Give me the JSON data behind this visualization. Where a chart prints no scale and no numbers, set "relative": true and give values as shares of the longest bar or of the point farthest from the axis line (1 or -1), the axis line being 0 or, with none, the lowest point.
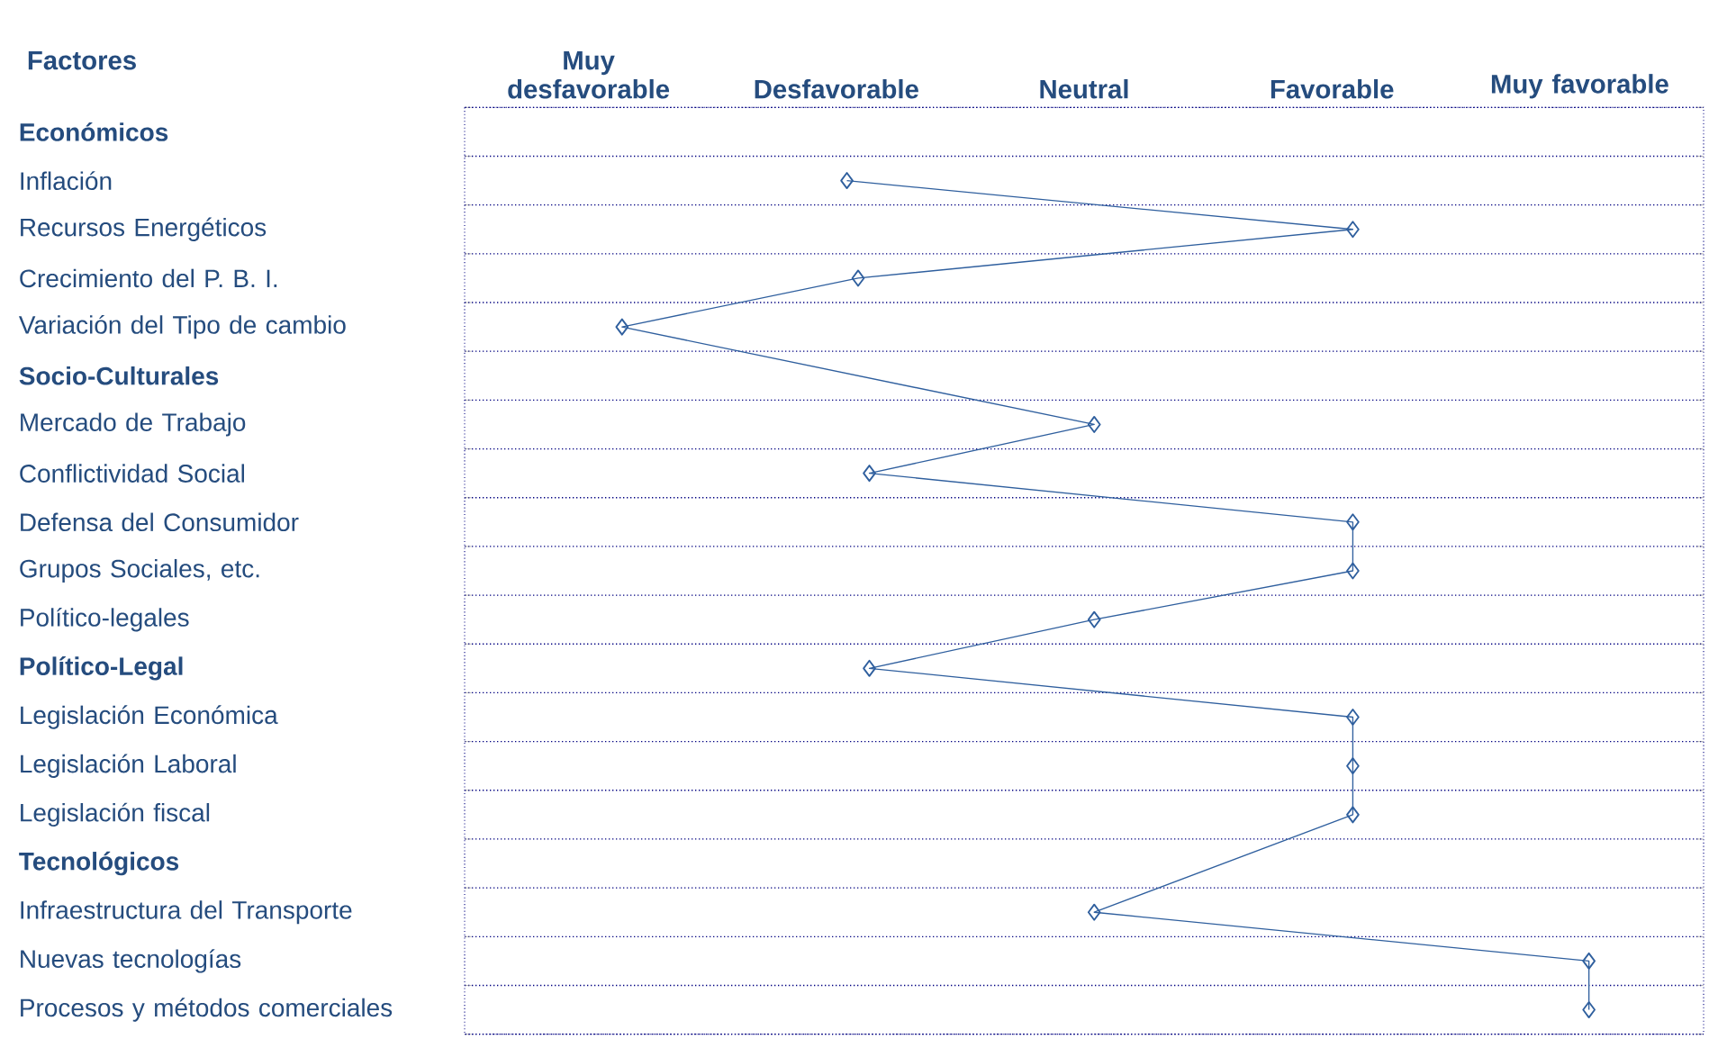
{
  "chart_data": {
    "type": "line",
    "orientation": "horizontal",
    "relative": true,
    "ylabel": "Factores",
    "categories": [
      "**Económicos**",
      "Inflación",
      "Recursos Energéticos",
      "Crecimiento del P. B. I.",
      "Variación del Tipo de cambio",
      "**Socio-Culturales**",
      "Mercado de Trabajo",
      "Conflictividad Social",
      "Defensa del Consumidor",
      "Grupos Sociales, etc.",
      "Político-legales",
      "**Político-Legal**",
      "Legislación Económica",
      "Legislación Laboral",
      "Legislación fiscal",
      "**Tecnológicos**",
      "Infraestructura del Transporte",
      "Nuevas tecnologías",
      "Procesos y métodos comerciales"
    ],
    "values": [
      null,
      0.34,
      0.79,
      0.35,
      0.14,
      null,
      0.56,
      0.36,
      0.79,
      0.79,
      0.56,
      0.36,
      0.79,
      0.79,
      0.79,
      null,
      0.56,
      1,
      1
    ],
    "color": "#2f5f9e",
    "marker": "diamond",
    "line_style": "solid",
    "grid": true,
    "annotations": [
      "Muy desfavorable",
      "Desfavorable",
      "Neutral",
      "Favorable",
      "Muy favorable"
    ]
  }
}
